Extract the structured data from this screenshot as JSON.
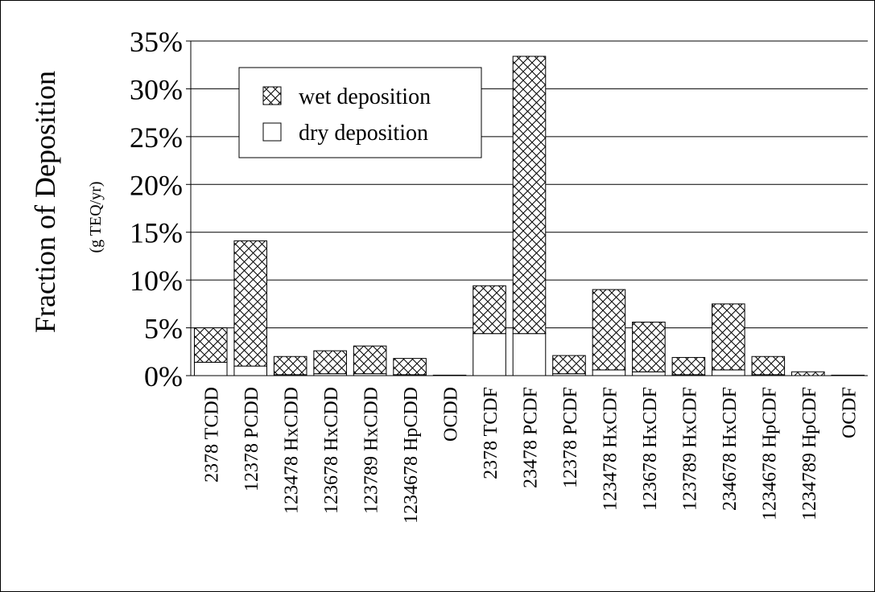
{
  "chart_data": {
    "type": "bar",
    "stacked": true,
    "ylabel": "Fraction of Deposition",
    "ylabel_sub": "(g TEQ/yr)",
    "xlabel": "",
    "ylim": [
      0,
      35
    ],
    "y_ticks": [
      "0%",
      "5%",
      "10%",
      "15%",
      "20%",
      "25%",
      "30%",
      "35%"
    ],
    "grid": "horizontal",
    "legend_position": "top-left",
    "categories": [
      "2378 TCDD",
      "12378 PCDD",
      "123478 HxCDD",
      "123678 HxCDD",
      "123789 HxCDD",
      "1234678 HpCDD",
      "OCDD",
      "2378 TCDF",
      "23478 PCDF",
      "12378 PCDF",
      "123478 HxCDF",
      "123678 HxCDF",
      "123789 HxCDF",
      "234678 HxCDF",
      "1234678 HpCDF",
      "1234789 HpCDF",
      "OCDF"
    ],
    "series": [
      {
        "name": "dry deposition",
        "pattern": "none",
        "values": [
          1.4,
          1.0,
          0.1,
          0.2,
          0.2,
          0.1,
          0.0,
          4.4,
          4.4,
          0.2,
          0.6,
          0.4,
          0.1,
          0.6,
          0.1,
          0.0,
          0.0
        ]
      },
      {
        "name": "wet deposition",
        "pattern": "crosshatch",
        "values": [
          3.6,
          13.1,
          1.9,
          2.4,
          2.9,
          1.7,
          0.05,
          5.0,
          29.0,
          1.9,
          8.4,
          5.2,
          1.8,
          6.9,
          1.9,
          0.4,
          0.05
        ]
      }
    ]
  },
  "colors": {
    "bar_fill": "#ffffff",
    "stroke": "#000000"
  }
}
